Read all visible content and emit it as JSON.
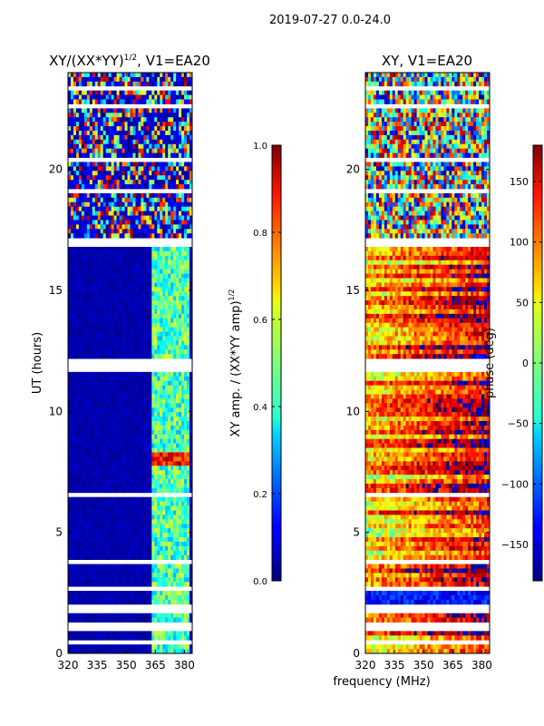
{
  "suptitle": "2019-07-27 0.0-24.0",
  "xlabel_shared": "frequency (MHz)",
  "chart_data": [
    {
      "type": "heatmap",
      "title_main": "XY/(XX*YY)",
      "title_exp": "1/2",
      "title_suffix": ", V1=EA20",
      "xlabel": "frequency (MHz)",
      "ylabel": "UT (hours)",
      "xlim": [
        320,
        384
      ],
      "ylim": [
        0,
        24
      ],
      "xticks": [
        320,
        335,
        350,
        365,
        380
      ],
      "yticks": [
        0,
        5,
        10,
        15,
        20
      ],
      "colorbar": {
        "label_main": "XY amp. / (XX*YY amp)",
        "label_exp": "1/2",
        "range": [
          0.0,
          1.0
        ],
        "ticks": [
          "0.0",
          "0.2",
          "0.4",
          "0.6",
          "0.8",
          "1.0"
        ],
        "tick_values": [
          0.0,
          0.2,
          0.4,
          0.6,
          0.8,
          1.0
        ],
        "colormap": "jet"
      },
      "value_description": "mostly low (~0) below 363 MHz; ~0.3-0.6 in 363-382 MHz band; noisy high values above 17 h; bright feature ~0.9 near 8 h, 363-380 MHz"
    },
    {
      "type": "heatmap",
      "title": "XY, V1=EA20",
      "xlabel": "frequency (MHz)",
      "ylabel": "",
      "xlim": [
        320,
        384
      ],
      "ylim": [
        0,
        24
      ],
      "xticks": [
        320,
        335,
        350,
        365,
        380
      ],
      "yticks": [
        0,
        5,
        10,
        15,
        20
      ],
      "colorbar": {
        "label": "phase (deg)",
        "range": [
          -180,
          180
        ],
        "ticks": [
          "150",
          "100",
          "50",
          "0",
          "−50",
          "−100",
          "−150"
        ],
        "tick_values": [
          150,
          100,
          50,
          0,
          -50,
          -100,
          -150
        ],
        "colormap": "jet"
      },
      "value_description": "phase varies with frequency and time; mostly 0 to +150 deg with bands of -100 to -150 deg"
    }
  ]
}
